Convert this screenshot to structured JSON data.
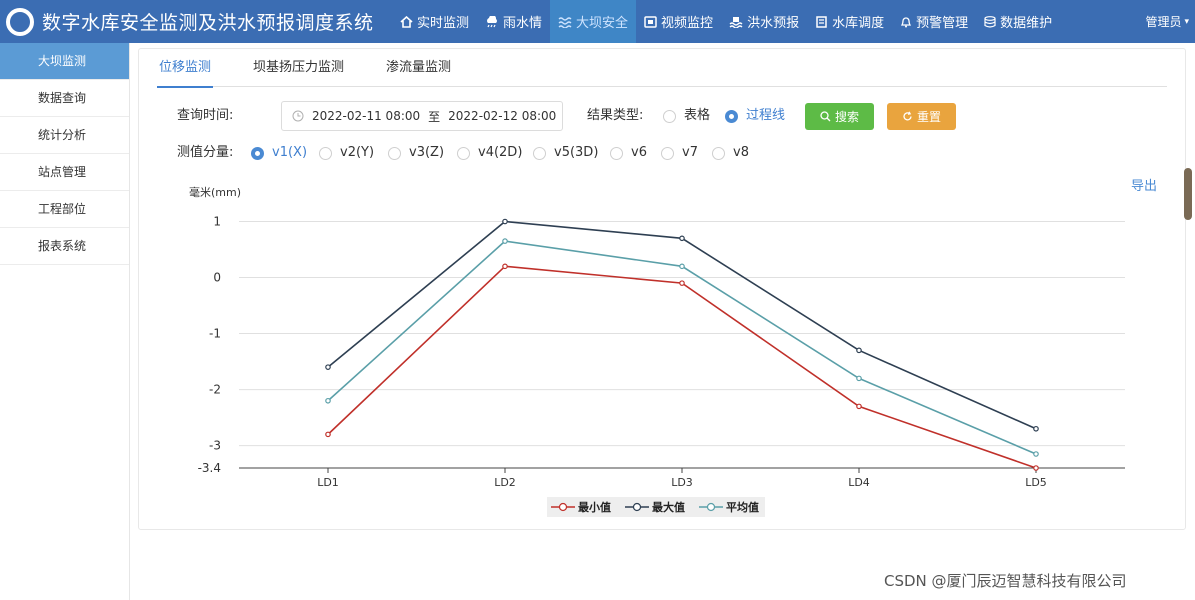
{
  "header": {
    "title": "数字水库安全监测及洪水预报调度系统",
    "nav": [
      {
        "label": "实时监测",
        "icon": "home-icon"
      },
      {
        "label": "雨水情",
        "icon": "rain-cloud-icon"
      },
      {
        "label": "大坝安全",
        "icon": "water-waves-icon",
        "active": true
      },
      {
        "label": "视频监控",
        "icon": "camera-icon"
      },
      {
        "label": "洪水预报",
        "icon": "flood-icon"
      },
      {
        "label": "水库调度",
        "icon": "building-icon"
      },
      {
        "label": "预警管理",
        "icon": "bell-icon"
      },
      {
        "label": "数据维护",
        "icon": "database-icon"
      }
    ],
    "user": "管理员"
  },
  "sidebar": {
    "items": [
      {
        "label": "大坝监测",
        "active": true
      },
      {
        "label": "数据查询"
      },
      {
        "label": "统计分析"
      },
      {
        "label": "站点管理"
      },
      {
        "label": "工程部位"
      },
      {
        "label": "报表系统"
      }
    ]
  },
  "tabs": [
    {
      "label": "位移监测",
      "active": true
    },
    {
      "label": "坝基扬压力监测"
    },
    {
      "label": "渗流量监测"
    }
  ],
  "query": {
    "time_label": "查询时间:",
    "start": "2022-02-11 08:00",
    "separator": "至",
    "end": "2022-02-12 08:00",
    "result_type_label": "结果类型:",
    "result_options": [
      "表格",
      "过程线"
    ],
    "result_selected": "过程线",
    "search_label": "搜索",
    "reset_label": "重置",
    "component_label": "测值分量:",
    "components": [
      "v1(X)",
      "v2(Y)",
      "v3(Z)",
      "v4(2D)",
      "v5(3D)",
      "v6",
      "v7",
      "v8"
    ],
    "component_selected": "v1(X)"
  },
  "export_label": "导出",
  "watermark": "CSDN @厦门辰迈智慧科技有限公司",
  "colors": {
    "header_bg": "#3b6db3",
    "accent": "#3f7fcf",
    "search_button": "#5dbb46",
    "reset_button": "#e9a43e"
  },
  "chart_data": {
    "type": "line",
    "ylabel": "毫米(mm)",
    "categories": [
      "LD1",
      "LD2",
      "LD3",
      "LD4",
      "LD5"
    ],
    "yticks": [
      1,
      0,
      -1,
      -2,
      -3,
      -3.4
    ],
    "ylim": [
      -3.4,
      1
    ],
    "series": [
      {
        "name": "最小值",
        "color": "#c0302a",
        "values": [
          -2.8,
          0.2,
          -0.1,
          -2.3,
          -3.4
        ]
      },
      {
        "name": "最大值",
        "color": "#2e3f52",
        "values": [
          -1.6,
          1.0,
          0.7,
          -1.3,
          -2.7
        ]
      },
      {
        "name": "平均值",
        "color": "#5a9fa8",
        "values": [
          -2.2,
          0.65,
          0.2,
          -1.8,
          -3.15
        ]
      }
    ]
  }
}
